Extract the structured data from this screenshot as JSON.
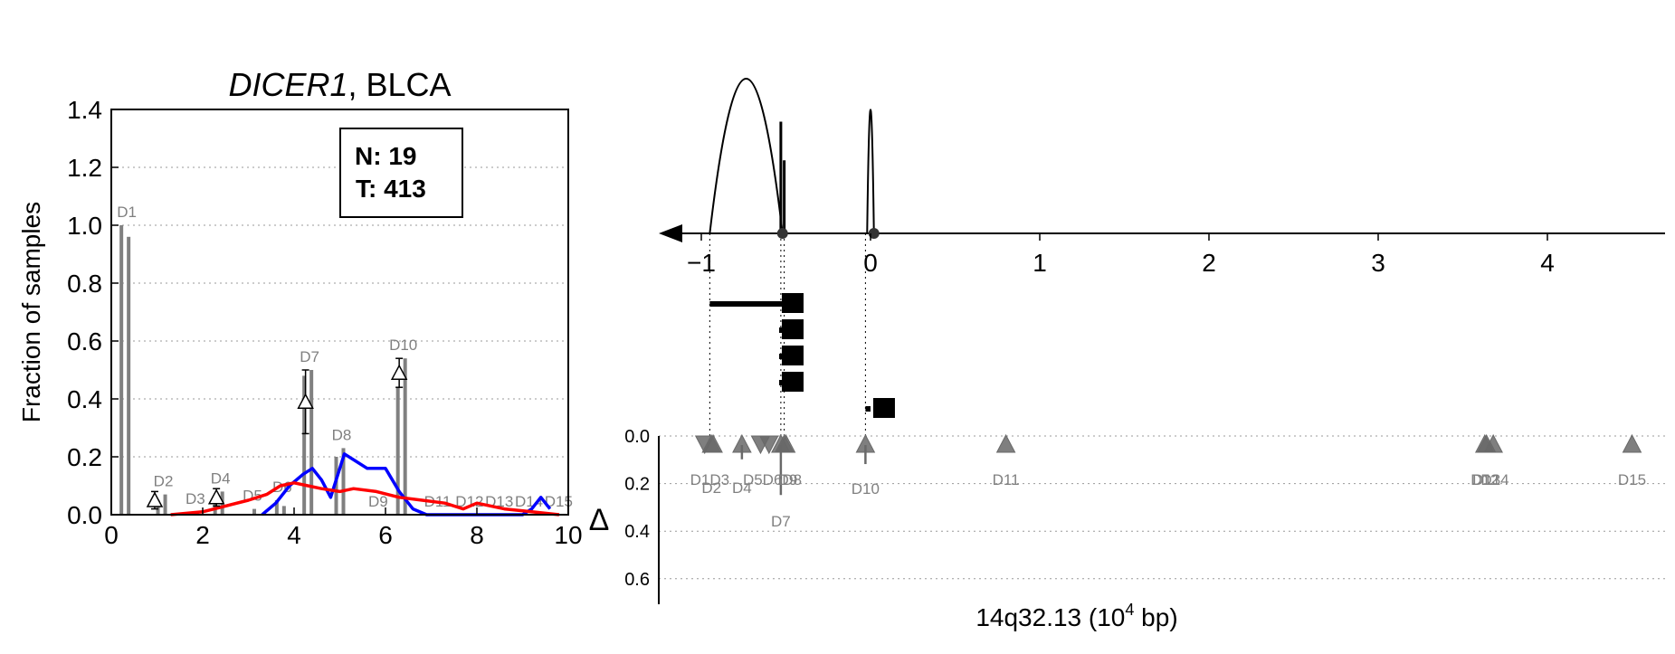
{
  "chart_data": [
    {
      "type": "bar",
      "title_gene": "DICER1",
      "title_rest": ", BLCA",
      "ylabel": "Fraction of samples",
      "xlabel": "",
      "xlim": [
        0,
        10
      ],
      "ylim": [
        0,
        1.4
      ],
      "xticks": [
        "0",
        "2",
        "4",
        "6",
        "8",
        "10"
      ],
      "yticks": [
        "0.0",
        "0.2",
        "0.4",
        "0.6",
        "0.8",
        "1.0",
        "1.2",
        "1.4"
      ],
      "grid": "horizontal dotted",
      "annotation": {
        "n_label": "N: 19",
        "t_label": "T: 413"
      },
      "bar_color": "#808080",
      "bars": [
        {
          "label": "D1",
          "x": 0.3,
          "n": 1.0,
          "t": 0.96
        },
        {
          "label": "D2",
          "x": 1.1,
          "n": 0.05,
          "t": 0.07
        },
        {
          "label": "D3",
          "x": 1.8,
          "n": 0.0,
          "t": 0.01
        },
        {
          "label": "D4",
          "x": 2.35,
          "n": 0.06,
          "t": 0.08
        },
        {
          "label": "D5",
          "x": 3.05,
          "n": 0.0,
          "t": 0.02
        },
        {
          "label": "D6",
          "x": 3.7,
          "n": 0.05,
          "t": 0.03
        },
        {
          "label": "D7",
          "x": 4.3,
          "n": 0.48,
          "t": 0.5
        },
        {
          "label": "D8",
          "x": 5.0,
          "n": 0.2,
          "t": 0.23
        },
        {
          "label": "D9",
          "x": 5.8,
          "n": 0.0,
          "t": 0.0
        },
        {
          "label": "D10",
          "x": 6.35,
          "n": 0.44,
          "t": 0.54
        },
        {
          "label": "D11",
          "x": 7.1,
          "n": 0.0,
          "t": 0.0
        },
        {
          "label": "D12",
          "x": 7.8,
          "n": 0.0,
          "t": 0.0
        },
        {
          "label": "D13",
          "x": 8.45,
          "n": 0.0,
          "t": 0.0
        },
        {
          "label": "D14",
          "x": 9.1,
          "n": 0.0,
          "t": 0.0
        },
        {
          "label": "D15",
          "x": 9.75,
          "n": 0.0,
          "t": 0.0
        }
      ],
      "delta_markers": [
        {
          "x": 0.95,
          "y": 0.05,
          "err": 0.03
        },
        {
          "x": 2.3,
          "y": 0.06,
          "err": 0.03
        },
        {
          "x": 4.25,
          "y": 0.39,
          "err": 0.11
        },
        {
          "x": 6.3,
          "y": 0.49,
          "err": 0.05
        }
      ],
      "series": [
        {
          "color": "#0000ff",
          "x": [
            3.3,
            3.6,
            3.9,
            4.2,
            4.4,
            4.6,
            4.8,
            5.1,
            5.6,
            6.0,
            6.3,
            6.6,
            6.9,
            9.0,
            9.2,
            9.4,
            9.6
          ],
          "y": [
            0.0,
            0.04,
            0.1,
            0.14,
            0.16,
            0.12,
            0.06,
            0.21,
            0.16,
            0.16,
            0.08,
            0.02,
            0.0,
            0.0,
            0.02,
            0.06,
            0.02
          ]
        },
        {
          "color": "#ff0000",
          "x": [
            1.3,
            2.0,
            2.5,
            3.0,
            3.4,
            3.7,
            4.0,
            4.3,
            4.6,
            5.0,
            5.3,
            5.8,
            6.3,
            6.8,
            7.3,
            7.7,
            8.0,
            8.6,
            9.2,
            9.8
          ],
          "y": [
            0.0,
            0.01,
            0.03,
            0.05,
            0.07,
            0.1,
            0.11,
            0.1,
            0.09,
            0.08,
            0.09,
            0.08,
            0.06,
            0.05,
            0.04,
            0.02,
            0.04,
            0.02,
            0.01,
            0.0
          ]
        }
      ]
    },
    {
      "type": "scatter",
      "xlabel_main": "14q32.13 (10",
      "xlabel_sup": "4",
      "xlabel_end": " bp)",
      "ylabel": "Δ",
      "xlim": [
        -1.3,
        4.8
      ],
      "xticks": [
        "−1",
        "0",
        "1",
        "2",
        "3",
        "4"
      ],
      "xtick_values": [
        -1,
        0,
        1,
        2,
        3,
        4
      ],
      "yticks": [
        "0.0",
        "0.2",
        "0.4",
        "0.6"
      ],
      "ytick_values": [
        0.0,
        0.2,
        0.4,
        0.6
      ],
      "ylim": [
        0,
        0.7
      ],
      "grid": "horizontal dotted",
      "marker_color": "#696969",
      "junctions": [
        -0.52,
        0.02
      ],
      "guide_lines": [
        -0.95,
        -0.53,
        -0.51,
        -0.03
      ],
      "arcs": [
        {
          "x0": -0.95,
          "x1": -0.52,
          "height": 0.9
        },
        {
          "x0": -0.02,
          "x1": 0.02,
          "height": 0.72
        }
      ],
      "spikes": [
        {
          "x": -0.53,
          "height": 0.52
        },
        {
          "x": -0.51,
          "height": 0.34
        }
      ],
      "exon_bars": [
        {
          "x0": -0.95,
          "x1": -0.52,
          "row": 0
        },
        {
          "x0": -0.54,
          "x1": -0.52,
          "row": 1
        },
        {
          "x0": -0.54,
          "x1": -0.52,
          "row": 2
        },
        {
          "x0": -0.54,
          "x1": -0.52,
          "row": 3
        },
        {
          "x0": -0.03,
          "x1": 0.0,
          "row": 4
        }
      ],
      "exon_boxes": [
        {
          "x": -0.46,
          "row": 0
        },
        {
          "x": -0.46,
          "row": 1
        },
        {
          "x": -0.46,
          "row": 2
        },
        {
          "x": -0.46,
          "row": 3
        },
        {
          "x": 0.08,
          "row": 4
        }
      ],
      "points": [
        {
          "label": "D1",
          "x": -0.98,
          "down": true
        },
        {
          "label": "D3",
          "x": -0.93,
          "down": false
        },
        {
          "label": "D2",
          "x": -0.94,
          "down": false,
          "label_row": 1
        },
        {
          "label": "D4",
          "x": -0.76,
          "down": false,
          "label_row": 1,
          "err": 0.06
        },
        {
          "label": "D5",
          "x": -0.65,
          "down": true
        },
        {
          "label": "D6",
          "x": -0.6,
          "down": true
        },
        {
          "label": "D7",
          "x": -0.53,
          "down": false,
          "label_row": 2,
          "err": 0.21
        },
        {
          "label": "D8",
          "x": -0.51,
          "down": false
        },
        {
          "label": "D9",
          "x": -0.5,
          "down": false
        },
        {
          "label": "D10",
          "x": -0.03,
          "down": false,
          "label_row": 1,
          "err": 0.08
        },
        {
          "label": "D11",
          "x": 0.8,
          "down": false
        },
        {
          "label": "D12",
          "x": 3.63,
          "down": false
        },
        {
          "label": "D13",
          "x": 3.64,
          "down": false
        },
        {
          "label": "D14",
          "x": 3.68,
          "down": false
        },
        {
          "label": "D15",
          "x": 4.5,
          "down": false
        }
      ],
      "label_overlap_text": {
        "left_cluster": "D1D3",
        "left_cluster_2": "D2",
        "mid_cluster": "D5D6D8",
        "mid_cluster_2": "D9",
        "right_cluster": "D12",
        "right_cluster_2": "D14",
        "right_cluster_3": "D13"
      }
    }
  ]
}
